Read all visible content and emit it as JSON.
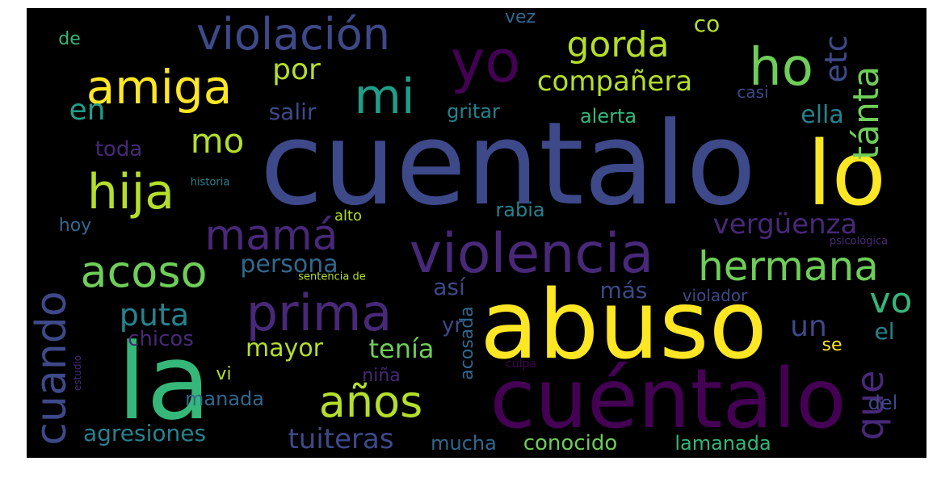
{
  "palette": {
    "purple": "#440154",
    "indigo": "#482878",
    "slate": "#3e4989",
    "blue": "#31688e",
    "teal": "#26828e",
    "cyan": "#1f9e89",
    "green": "#35b779",
    "lime": "#6ece58",
    "yellowgreen": "#b5de2b",
    "yellow": "#fde725"
  },
  "words": [
    "cuentalo",
    "la",
    "abuso",
    "cuéntalo",
    "lo",
    "violencia",
    "yo",
    "prima",
    "violación",
    "amiga",
    "mi",
    "ho",
    "hija",
    "mamá",
    "acoso",
    "hermana",
    "cuando",
    "años",
    "gorda",
    "tánta",
    "etc",
    "que",
    "compañera",
    "vergüenza",
    "por",
    "en",
    "mo",
    "puta",
    "vo",
    "tuiteras",
    "persona",
    "tenía",
    "mayor",
    "un",
    "salir",
    "agresiones",
    "ella",
    "conocido",
    "lamanada",
    "gritar",
    "toda",
    "alerta",
    "chicos",
    "manada",
    "así",
    "el",
    "más",
    "rabia",
    "mucha",
    "co",
    "del",
    "de",
    "niña",
    "yr",
    "acosada",
    "vez",
    "hoy",
    "alto",
    "vi",
    "se",
    "casi",
    "violador",
    "historia",
    "sentencia de",
    "psicológica",
    "estudio",
    "culpa"
  ]
}
